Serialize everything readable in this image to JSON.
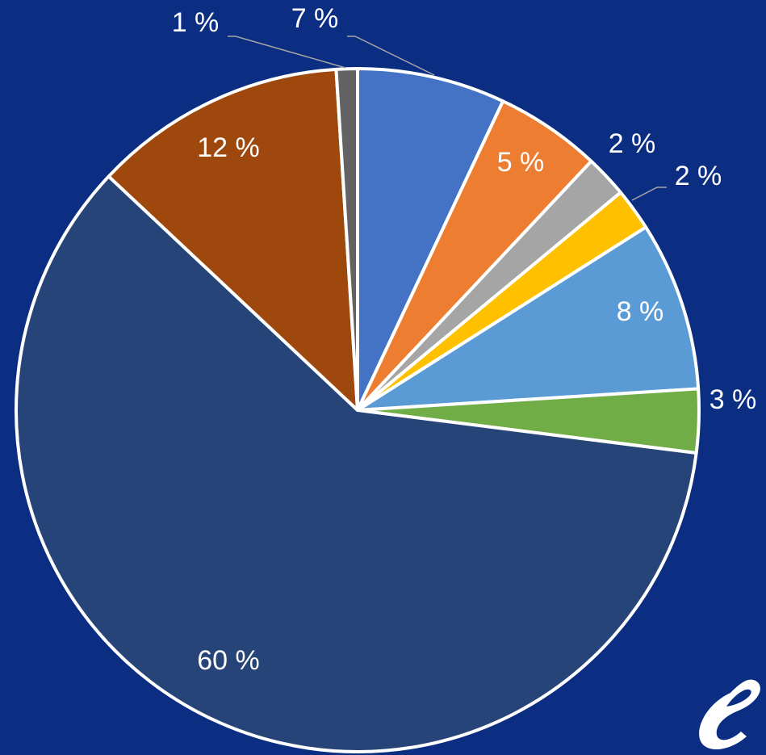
{
  "chart_data": {
    "type": "pie",
    "values": [
      7,
      5,
      2,
      2,
      8,
      3,
      60,
      12,
      1
    ],
    "value_labels": [
      "7 %",
      "5 %",
      "2 %",
      "2 %",
      "8 %",
      "3 %",
      "60 %",
      "12 %",
      "1 %"
    ],
    "colors": [
      "#4472c4",
      "#ed7d31",
      "#a5a5a5",
      "#ffc000",
      "#5b9bd5",
      "#70ad47",
      "#264478",
      "#9e480e",
      "#636363"
    ]
  }
}
